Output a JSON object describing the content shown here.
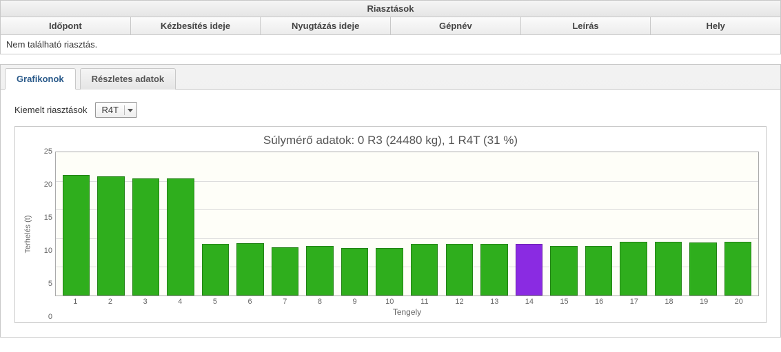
{
  "alerts_panel": {
    "title": "Riasztások",
    "columns": [
      "Időpont",
      "Kézbesítés ideje",
      "Nyugtázás ideje",
      "Gépnév",
      "Leírás",
      "Hely"
    ],
    "empty_message": "Nem található riasztás."
  },
  "tabs": {
    "active_index": 0,
    "items": [
      "Grafikonok",
      "Részletes adatok"
    ]
  },
  "filter": {
    "label": "Kiemelt riasztások",
    "selected": "R4T"
  },
  "chart": {
    "type": "bar",
    "title": "Súlymérő adatok: 0 R3 (24480 kg), 1 R4T (31 %)",
    "ylabel": "Terhelés (t)",
    "xlabel": "Tengely",
    "ylim": [
      0,
      25
    ],
    "ytick_step": 5,
    "yticks": [
      0,
      5,
      10,
      15,
      20,
      25
    ],
    "categories": [
      "1",
      "2",
      "3",
      "4",
      "5",
      "6",
      "7",
      "8",
      "9",
      "10",
      "11",
      "12",
      "13",
      "14",
      "15",
      "16",
      "17",
      "18",
      "19",
      "20"
    ],
    "values": [
      21.0,
      20.8,
      20.4,
      20.4,
      9.0,
      9.1,
      8.4,
      8.6,
      8.3,
      8.3,
      9.0,
      9.0,
      9.0,
      9.0,
      8.6,
      8.7,
      9.4,
      9.4,
      9.2,
      9.4
    ],
    "bar_colors": [
      "#2fae1d",
      "#2fae1d",
      "#2fae1d",
      "#2fae1d",
      "#2fae1d",
      "#2fae1d",
      "#2fae1d",
      "#2fae1d",
      "#2fae1d",
      "#2fae1d",
      "#2fae1d",
      "#2fae1d",
      "#2fae1d",
      "#8a2be2",
      "#2fae1d",
      "#2fae1d",
      "#2fae1d",
      "#2fae1d",
      "#2fae1d",
      "#2fae1d"
    ],
    "background_color": "#fefef8",
    "grid_color": "#dddddd",
    "border_color": "#aaaaaa",
    "bar_width": 0.78,
    "title_fontsize": 17,
    "label_fontsize": 11
  }
}
